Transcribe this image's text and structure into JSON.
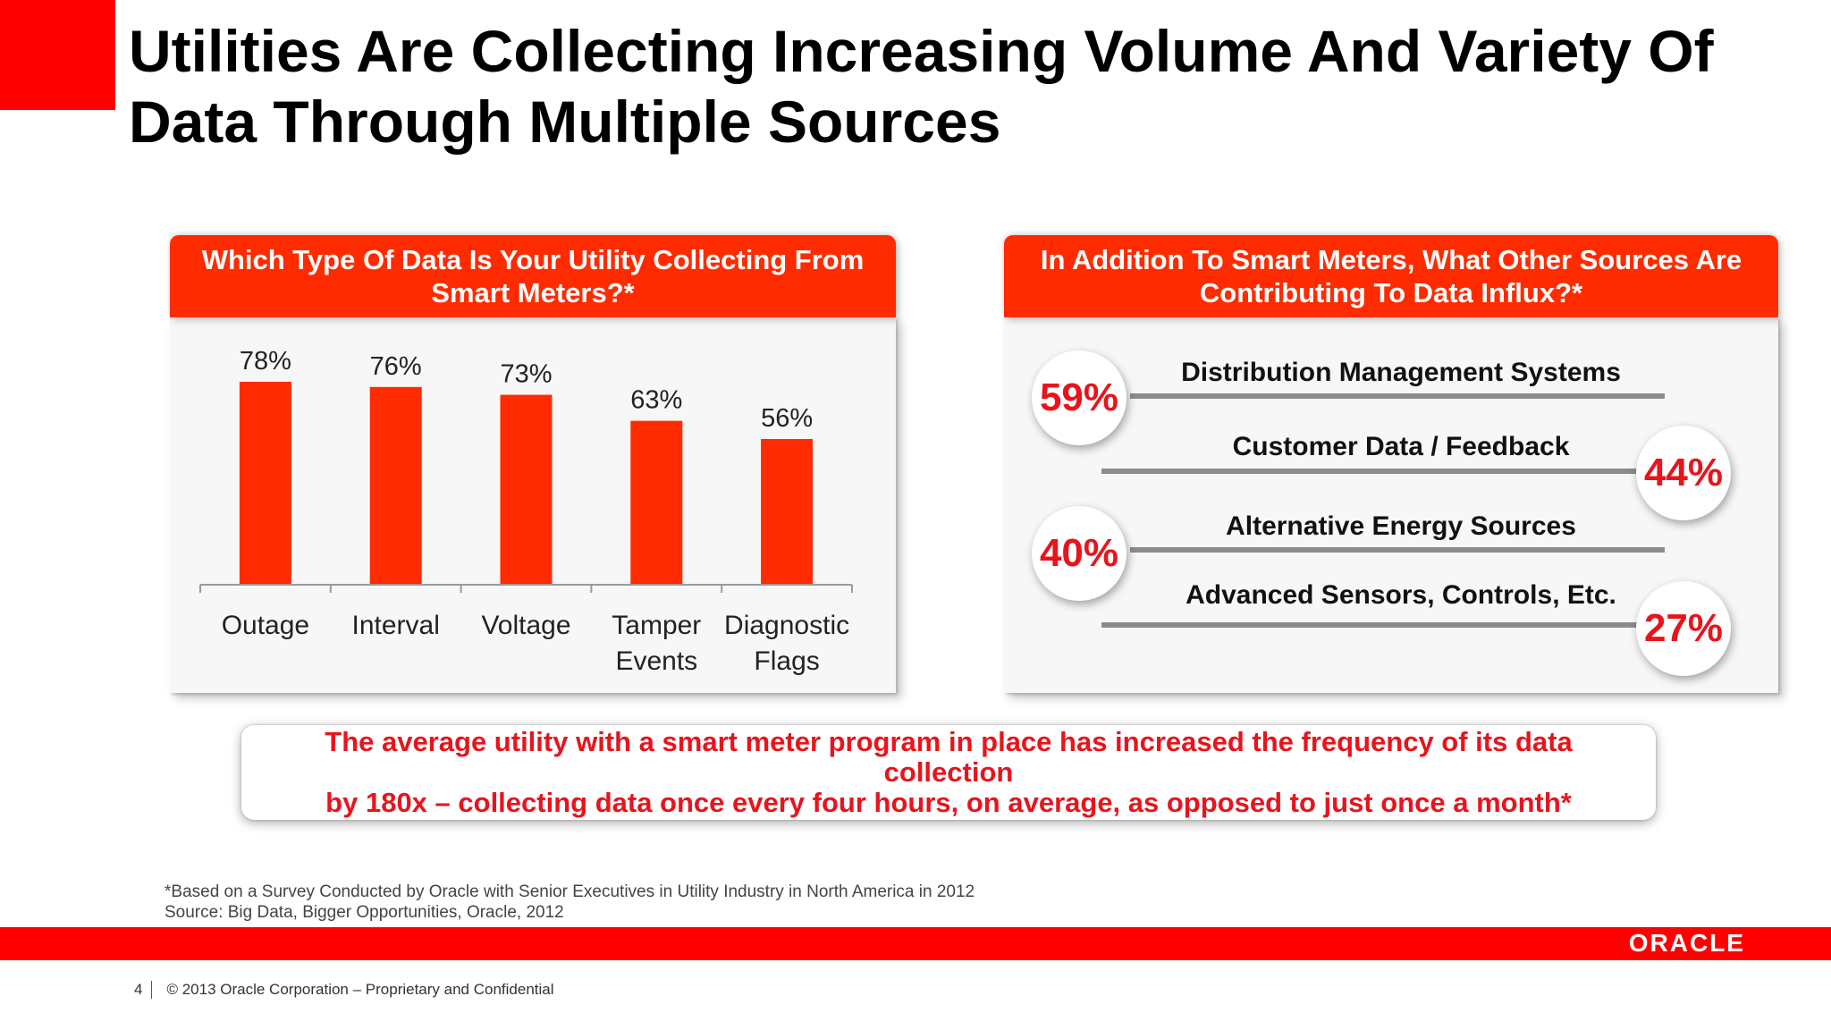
{
  "title": "Utilities Are Collecting Increasing Volume And Variety Of Data Through Multiple Sources",
  "left_panel": {
    "header": "Which Type Of Data Is Your Utility Collecting From Smart Meters?*"
  },
  "right_panel": {
    "header": "In Addition To Smart Meters, What Other Sources Are Contributing To Data Influx?*",
    "sources": [
      {
        "label": "Distribution Management Systems",
        "percent_label": "59%"
      },
      {
        "label": "Customer Data / Feedback",
        "percent_label": "44%"
      },
      {
        "label": "Alternative Energy Sources",
        "percent_label": "40%"
      },
      {
        "label": "Advanced Sensors, Controls, Etc.",
        "percent_label": "27%"
      }
    ]
  },
  "callout": {
    "line1": "The average utility with a smart meter program in place has increased the frequency of its data collection",
    "line2": "by 180x – collecting data once every four hours, on average, as opposed to just once a month*"
  },
  "footnote": {
    "line1": "*Based on a Survey Conducted by Oracle with Senior Executives in Utility Industry in North America in 2012",
    "line2": "Source: Big Data, Bigger Opportunities, Oracle, 2012"
  },
  "footer": {
    "page": "4",
    "copyright": "© 2013 Oracle Corporation – Proprietary and Confidential",
    "logo": "ORACLE"
  },
  "colors": {
    "accent_red": "#ff2b00",
    "bar_red": "#ff2b00",
    "text_red": "#e8141c",
    "line_gray": "#8c8c8c"
  },
  "chart_data": [
    {
      "type": "bar",
      "title": "Which Type Of Data Is Your Utility Collecting From Smart Meters?*",
      "categories": [
        "Outage",
        "Interval",
        "Voltage",
        "Tamper Events",
        "Diagnostic Flags"
      ],
      "category_lines": [
        [
          "Outage"
        ],
        [
          "Interval"
        ],
        [
          "Voltage"
        ],
        [
          "Tamper",
          "Events"
        ],
        [
          "Diagnostic",
          "Flags"
        ]
      ],
      "values": [
        78,
        76,
        73,
        63,
        56
      ],
      "value_labels": [
        "78%",
        "76%",
        "73%",
        "63%",
        "56%"
      ],
      "unit": "%",
      "ylim": [
        0,
        100
      ],
      "grid": false,
      "legend": "none"
    },
    {
      "type": "table",
      "title": "In Addition To Smart Meters, What Other Sources Are Contributing To Data Influx?*",
      "categories": [
        "Distribution Management Systems",
        "Customer Data / Feedback",
        "Alternative Energy Sources",
        "Advanced Sensors, Controls, Etc."
      ],
      "values": [
        59,
        44,
        40,
        27
      ],
      "unit": "%"
    }
  ]
}
